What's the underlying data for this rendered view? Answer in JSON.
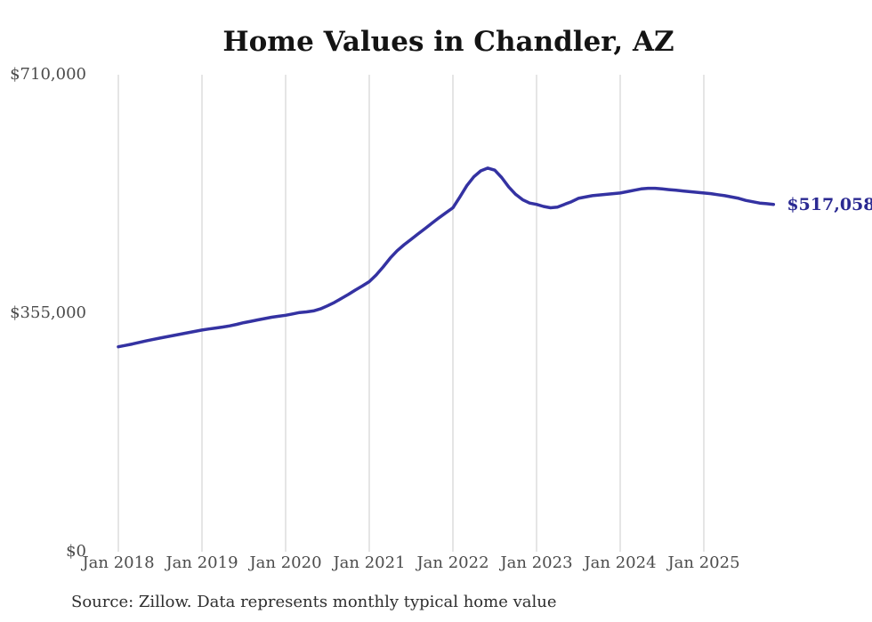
{
  "title": "Home Values in Chandler, AZ",
  "source_note": "Source: Zillow. Data represents monthly typical home value",
  "colors": {
    "line": "#3432a2",
    "latest_label": "#2b2a92",
    "gridline": "#cbcbcb",
    "title": "#141414",
    "axis_label": "#4b4b4b",
    "source": "#2e2e2e",
    "background": "#ffffff"
  },
  "chart_data": {
    "type": "line",
    "title": "Home Values in Chandler, AZ",
    "series_name": "Monthly typical home value (Zillow)",
    "grid": "vertical-only",
    "legend": "none",
    "ylim": [
      0,
      710000
    ],
    "latest_value": 517058,
    "latest_value_label": "$517,058",
    "y_ticks": [
      {
        "label": "$710,000",
        "value": 710000
      },
      {
        "label": "$355,000",
        "value": 355000
      },
      {
        "label": "$0",
        "value": 0
      }
    ],
    "x_tick_labels": [
      "Jan 2018",
      "Jan 2019",
      "Jan 2020",
      "Jan 2021",
      "Jan 2022",
      "Jan 2023",
      "Jan 2024",
      "Jan 2025"
    ],
    "x": [
      "2018-01",
      "2018-02",
      "2018-03",
      "2018-04",
      "2018-05",
      "2018-06",
      "2018-07",
      "2018-08",
      "2018-09",
      "2018-10",
      "2018-11",
      "2018-12",
      "2019-01",
      "2019-02",
      "2019-03",
      "2019-04",
      "2019-05",
      "2019-06",
      "2019-07",
      "2019-08",
      "2019-09",
      "2019-10",
      "2019-11",
      "2019-12",
      "2020-01",
      "2020-02",
      "2020-03",
      "2020-04",
      "2020-05",
      "2020-06",
      "2020-07",
      "2020-08",
      "2020-09",
      "2020-10",
      "2020-11",
      "2020-12",
      "2021-01",
      "2021-02",
      "2021-03",
      "2021-04",
      "2021-05",
      "2021-06",
      "2021-07",
      "2021-08",
      "2021-09",
      "2021-10",
      "2021-11",
      "2021-12",
      "2022-01",
      "2022-02",
      "2022-03",
      "2022-04",
      "2022-05",
      "2022-06",
      "2022-07",
      "2022-08",
      "2022-09",
      "2022-10",
      "2022-11",
      "2022-12",
      "2023-01",
      "2023-02",
      "2023-03",
      "2023-04",
      "2023-05",
      "2023-06",
      "2023-07",
      "2023-08",
      "2023-09",
      "2023-10",
      "2023-11",
      "2023-12",
      "2024-01",
      "2024-02",
      "2024-03",
      "2024-04",
      "2024-05",
      "2024-06",
      "2024-07",
      "2024-08",
      "2024-09",
      "2024-10",
      "2024-11",
      "2024-12",
      "2025-01",
      "2025-02",
      "2025-03",
      "2025-04",
      "2025-05",
      "2025-06",
      "2025-07",
      "2025-08",
      "2025-09",
      "2025-10",
      "2025-11"
    ],
    "values": [
      305000,
      307000,
      309200,
      311500,
      313800,
      316000,
      318000,
      320000,
      322000,
      324000,
      326000,
      328000,
      330000,
      331500,
      333000,
      334500,
      336200,
      338500,
      341000,
      343000,
      345000,
      347000,
      349000,
      350500,
      352000,
      354000,
      356000,
      357000,
      358500,
      361500,
      366000,
      371000,
      377000,
      383000,
      389500,
      395500,
      402000,
      412000,
      424000,
      437000,
      448000,
      457000,
      465000,
      473000,
      481000,
      489000,
      497000,
      504500,
      512000,
      528000,
      545000,
      558000,
      567000,
      571000,
      568000,
      557000,
      543000,
      532000,
      524000,
      519000,
      517000,
      514000,
      512000,
      513000,
      517000,
      521000,
      526000,
      528000,
      530000,
      531000,
      532000,
      533000,
      534000,
      536000,
      538000,
      540000,
      541000,
      541000,
      540000,
      539000,
      538000,
      537000,
      536000,
      535000,
      534000,
      533000,
      531500,
      530000,
      528000,
      526000,
      523000,
      521000,
      519000,
      518000,
      517058
    ]
  }
}
